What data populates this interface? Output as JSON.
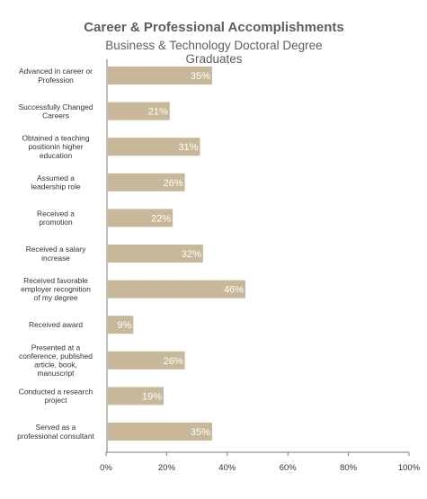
{
  "chart_data": {
    "type": "bar",
    "orientation": "horizontal",
    "title": "Career & Professional Accomplishments",
    "subtitle": "Business & Technology Doctoral Degree Graduates",
    "categories": [
      [
        "Advanced in career or",
        "Profession"
      ],
      [
        "Successfully Changed",
        "Careers"
      ],
      [
        "Obtained a  teaching",
        "positionin higher",
        "education"
      ],
      [
        "Assumed a",
        "leadership role"
      ],
      [
        "Received a",
        "promotion"
      ],
      [
        "Received a salary",
        "increase"
      ],
      [
        "Received favorable",
        "employer recognition",
        "of my degree"
      ],
      [
        "Received award"
      ],
      [
        "Presented at a",
        "conference, published",
        "article, book,",
        "manuscript"
      ],
      [
        "Conducted a research",
        "project"
      ],
      [
        "Served as a",
        "professional consultant"
      ]
    ],
    "values": [
      35,
      21,
      31,
      26,
      22,
      32,
      46,
      9,
      26,
      19,
      35
    ],
    "value_labels": [
      "35%",
      "21%",
      "31%",
      "26%",
      "22%",
      "32%",
      "46%",
      "9%",
      "26%",
      "19%",
      "35%"
    ],
    "xlim": [
      0,
      100
    ],
    "x_ticks": [
      0,
      20,
      40,
      60,
      80,
      100
    ],
    "x_tick_labels": [
      "0%",
      "20%",
      "40%",
      "60%",
      "80%",
      "100%"
    ],
    "grid": false,
    "bar_color": "#c7b899",
    "axis_color": "#7a7a7a",
    "label_color": "#ffffff"
  }
}
